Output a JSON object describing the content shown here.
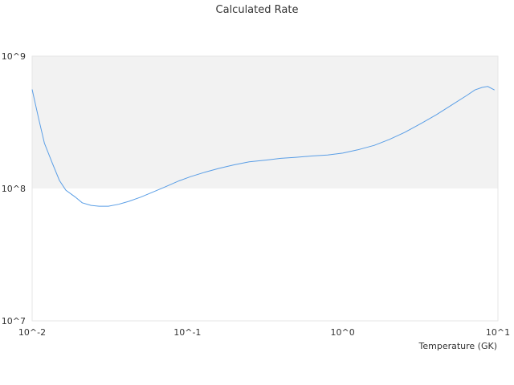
{
  "chart_data": {
    "type": "line",
    "title": "Calculated Rate",
    "xlabel": "Temperature (GK)",
    "ylabel": "",
    "x_scale": "log",
    "y_scale": "log",
    "xlim": [
      0.01,
      10
    ],
    "ylim": [
      10000000,
      1000000000
    ],
    "x_tick_labels": [
      "10^-2",
      "10^-1",
      "10^0",
      "10^1"
    ],
    "y_tick_labels": [
      "10^7",
      "10^8",
      "10^9"
    ],
    "shaded_band": {
      "y_from": 100000000,
      "y_to": 1000000000,
      "color": "#f2f2f2"
    },
    "grid": false,
    "legend": "none",
    "series": [
      {
        "color": "#5a9ee6",
        "points": [
          [
            0.01,
            560000000
          ],
          [
            0.011,
            340000000
          ],
          [
            0.012,
            220000000
          ],
          [
            0.0135,
            155000000
          ],
          [
            0.015,
            115000000
          ],
          [
            0.0165,
            97000000
          ],
          [
            0.019,
            86000000
          ],
          [
            0.021,
            78000000
          ],
          [
            0.024,
            74500000
          ],
          [
            0.027,
            73500000
          ],
          [
            0.031,
            73500000
          ],
          [
            0.036,
            76000000
          ],
          [
            0.042,
            80000000
          ],
          [
            0.05,
            86000000
          ],
          [
            0.06,
            94000000
          ],
          [
            0.072,
            103000000
          ],
          [
            0.088,
            114000000
          ],
          [
            0.105,
            123000000
          ],
          [
            0.13,
            133000000
          ],
          [
            0.16,
            142000000
          ],
          [
            0.2,
            151000000
          ],
          [
            0.25,
            159000000
          ],
          [
            0.32,
            164000000
          ],
          [
            0.4,
            169000000
          ],
          [
            0.5,
            172000000
          ],
          [
            0.63,
            176000000
          ],
          [
            0.8,
            179000000
          ],
          [
            1.0,
            185000000
          ],
          [
            1.25,
            196000000
          ],
          [
            1.6,
            212000000
          ],
          [
            2.0,
            235000000
          ],
          [
            2.5,
            265000000
          ],
          [
            3.2,
            310000000
          ],
          [
            4.0,
            360000000
          ],
          [
            5.0,
            425000000
          ],
          [
            6.3,
            505000000
          ],
          [
            7.1,
            555000000
          ],
          [
            7.9,
            580000000
          ],
          [
            8.6,
            590000000
          ],
          [
            9.5,
            555000000
          ]
        ]
      }
    ]
  }
}
